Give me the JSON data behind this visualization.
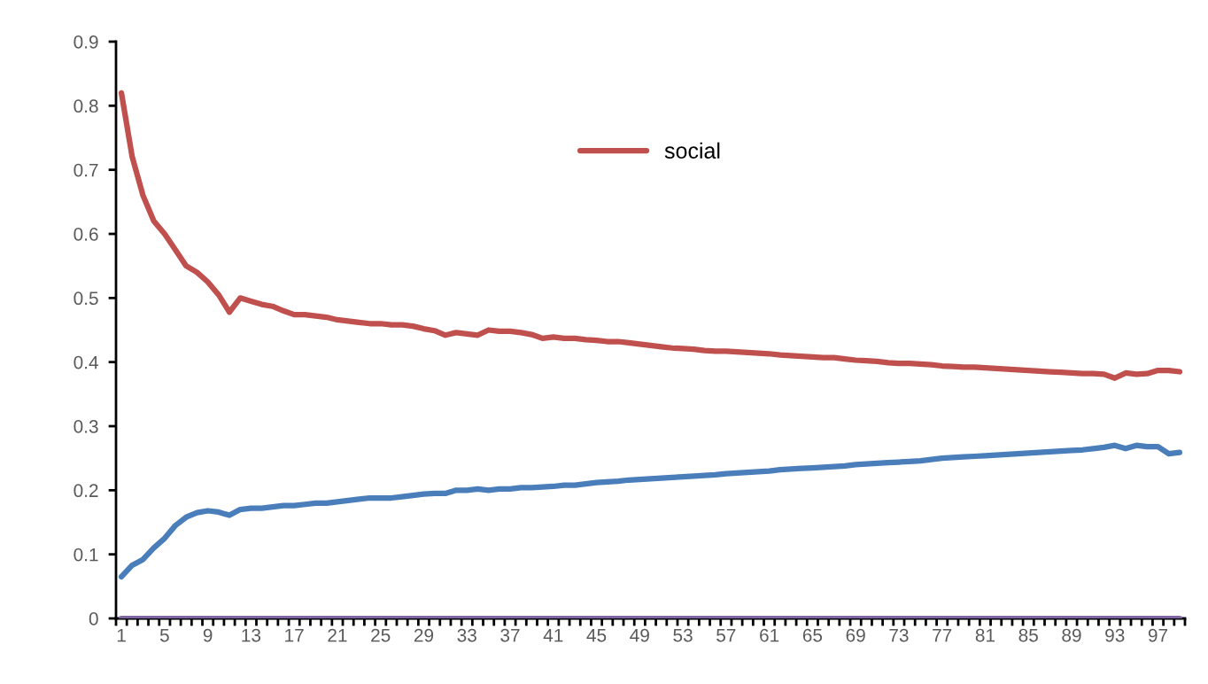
{
  "chart_data": {
    "type": "line",
    "categories": [
      "1",
      null,
      null,
      null,
      "5",
      null,
      null,
      null,
      "9",
      null,
      null,
      null,
      "13",
      null,
      null,
      null,
      "17",
      null,
      null,
      null,
      "21",
      null,
      null,
      null,
      "25",
      null,
      null,
      null,
      "29",
      null,
      null,
      null,
      "33",
      null,
      null,
      null,
      "37",
      null,
      null,
      null,
      "41",
      null,
      null,
      null,
      "45",
      null,
      null,
      null,
      "49",
      null,
      null,
      null,
      "53",
      null,
      null,
      null,
      "57",
      null,
      null,
      null,
      "61",
      null,
      null,
      null,
      "65",
      null,
      null,
      null,
      "69",
      null,
      null,
      null,
      "73",
      null,
      null,
      null,
      "77",
      null,
      null,
      null,
      "81",
      null,
      null,
      null,
      "85",
      null,
      null,
      null,
      "89",
      null,
      null,
      null,
      "93",
      null,
      null,
      null,
      "97",
      null,
      null
    ],
    "series": [
      {
        "color": "#4a7ebb",
        "values": [
          0.065,
          0.083,
          0.092,
          0.11,
          0.125,
          0.145,
          0.158,
          0.165,
          0.168,
          0.166,
          0.161,
          0.17,
          0.172,
          0.172,
          0.174,
          0.176,
          0.176,
          0.178,
          0.18,
          0.18,
          0.182,
          0.184,
          0.186,
          0.188,
          0.188,
          0.188,
          0.19,
          0.192,
          0.194,
          0.195,
          0.195,
          0.2,
          0.2,
          0.202,
          0.2,
          0.202,
          0.202,
          0.204,
          0.204,
          0.205,
          0.206,
          0.208,
          0.208,
          0.21,
          0.212,
          0.213,
          0.214,
          0.216,
          0.217,
          0.218,
          0.219,
          0.22,
          0.221,
          0.222,
          0.223,
          0.224,
          0.226,
          0.227,
          0.228,
          0.229,
          0.23,
          0.232,
          0.233,
          0.234,
          0.235,
          0.236,
          0.237,
          0.238,
          0.24,
          0.241,
          0.242,
          0.243,
          0.244,
          0.245,
          0.246,
          0.248,
          0.25,
          0.251,
          0.252,
          0.253,
          0.254,
          0.255,
          0.256,
          0.257,
          0.258,
          0.259,
          0.26,
          0.261,
          0.262,
          0.263,
          0.265,
          0.267,
          0.27,
          0.265,
          0.27,
          0.268,
          0.268,
          0.257,
          0.259
        ]
      },
      {
        "name": "social",
        "color": "#c0504d",
        "values": [
          0.82,
          0.72,
          0.66,
          0.62,
          0.6,
          0.575,
          0.55,
          0.54,
          0.525,
          0.505,
          0.478,
          0.5,
          0.495,
          0.49,
          0.487,
          0.48,
          0.474,
          0.474,
          0.472,
          0.47,
          0.466,
          0.464,
          0.462,
          0.46,
          0.46,
          0.458,
          0.458,
          0.456,
          0.452,
          0.449,
          0.442,
          0.446,
          0.444,
          0.442,
          0.45,
          0.448,
          0.448,
          0.446,
          0.443,
          0.437,
          0.439,
          0.437,
          0.437,
          0.435,
          0.434,
          0.432,
          0.432,
          0.43,
          0.428,
          0.426,
          0.424,
          0.422,
          0.421,
          0.42,
          0.418,
          0.417,
          0.417,
          0.416,
          0.415,
          0.414,
          0.413,
          0.411,
          0.41,
          0.409,
          0.408,
          0.407,
          0.407,
          0.405,
          0.403,
          0.402,
          0.401,
          0.399,
          0.398,
          0.398,
          0.397,
          0.396,
          0.394,
          0.393,
          0.392,
          0.392,
          0.391,
          0.39,
          0.389,
          0.388,
          0.387,
          0.386,
          0.385,
          0.384,
          0.383,
          0.382,
          0.382,
          0.381,
          0.375,
          0.383,
          0.381,
          0.382,
          0.387,
          0.387,
          0.385
        ]
      },
      {
        "color": "#8064a2",
        "values": [
          0,
          0,
          0,
          0,
          0,
          0,
          0,
          0,
          0,
          0,
          0,
          0,
          0,
          0,
          0,
          0,
          0,
          0,
          0,
          0,
          0,
          0,
          0,
          0,
          0,
          0,
          0,
          0,
          0,
          0,
          0,
          0,
          0,
          0,
          0,
          0,
          0,
          0,
          0,
          0,
          0,
          0,
          0,
          0,
          0,
          0,
          0,
          0,
          0,
          0,
          0,
          0,
          0,
          0,
          0,
          0,
          0,
          0,
          0,
          0,
          0,
          0,
          0,
          0,
          0,
          0,
          0,
          0,
          0,
          0,
          0,
          0,
          0,
          0,
          0,
          0,
          0,
          0,
          0,
          0,
          0,
          0,
          0,
          0,
          0,
          0,
          0,
          0,
          0,
          0,
          0,
          0,
          0,
          0,
          0,
          0,
          0,
          0,
          0
        ]
      }
    ],
    "ylim": [
      0,
      0.9
    ],
    "yticks": [
      0,
      {
        "value": 0.1,
        "label": "0.1"
      },
      {
        "value": 0.2,
        "label": "0.2"
      },
      {
        "value": 0.3,
        "label": "0.3"
      },
      {
        "value": 0.4,
        "label": "0.4"
      },
      {
        "value": 0.5,
        "label": "0.5"
      },
      {
        "value": 0.6,
        "label": "0.6"
      },
      {
        "value": 0.7,
        "label": "0.7"
      },
      {
        "value": 0.8,
        "label": "0.8"
      },
      {
        "value": 0.9,
        "label": "0.9"
      }
    ],
    "grid": false,
    "legend": "top",
    "marker": "none",
    "line_style": "solid"
  }
}
